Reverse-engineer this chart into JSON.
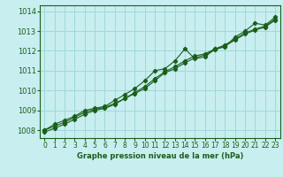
{
  "xlabel": "Graphe pression niveau de la mer (hPa)",
  "background_color": "#c8eef0",
  "grid_color": "#a0d8d8",
  "line_color": "#1a5e1a",
  "xlim": [
    -0.5,
    23.5
  ],
  "ylim": [
    1007.6,
    1014.3
  ],
  "xticks": [
    0,
    1,
    2,
    3,
    4,
    5,
    6,
    7,
    8,
    9,
    10,
    11,
    12,
    13,
    14,
    15,
    16,
    17,
    18,
    19,
    20,
    21,
    22,
    23
  ],
  "yticks": [
    1008,
    1009,
    1010,
    1011,
    1012,
    1013,
    1014
  ],
  "series1": [
    1008.0,
    1008.3,
    1008.5,
    1008.7,
    1009.0,
    1009.1,
    1009.2,
    1009.5,
    1009.8,
    1010.1,
    1010.5,
    1011.0,
    1011.1,
    1011.5,
    1012.1,
    1011.6,
    1011.7,
    1012.1,
    1012.2,
    1012.7,
    1013.0,
    1013.4,
    1013.3,
    1013.7
  ],
  "series2": [
    1008.0,
    1008.2,
    1008.4,
    1008.65,
    1008.9,
    1009.05,
    1009.15,
    1009.35,
    1009.6,
    1009.9,
    1010.2,
    1010.6,
    1010.95,
    1011.2,
    1011.5,
    1011.75,
    1011.85,
    1012.1,
    1012.3,
    1012.6,
    1012.9,
    1013.1,
    1013.25,
    1013.6
  ],
  "series3": [
    1007.9,
    1008.1,
    1008.3,
    1008.55,
    1008.8,
    1009.0,
    1009.1,
    1009.3,
    1009.6,
    1009.85,
    1010.1,
    1010.5,
    1010.9,
    1011.1,
    1011.4,
    1011.65,
    1011.8,
    1012.05,
    1012.25,
    1012.55,
    1012.85,
    1013.05,
    1013.2,
    1013.55
  ],
  "tick_fontsize": 5.5,
  "xlabel_fontsize": 6.0,
  "marker_size": 2.2,
  "linewidth": 0.8
}
